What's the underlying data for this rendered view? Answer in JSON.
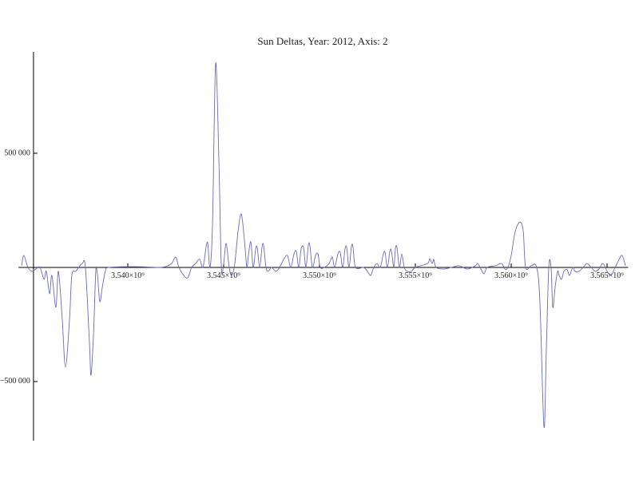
{
  "chart_data": {
    "type": "line",
    "title": "Sun Deltas, Year: 2012, Axis: 2",
    "xlim": [
      3534300000.0,
      3566100000.0
    ],
    "ylim": [
      -759000,
      944000
    ],
    "axes_origin_x": 3535080000.0,
    "xticks": [
      {
        "value": 3540000000.0,
        "label": "3.540×10⁹"
      },
      {
        "value": 3545000000.0,
        "label": "3.545×10⁹"
      },
      {
        "value": 3550000000.0,
        "label": "3.550×10⁹"
      },
      {
        "value": 3555000000.0,
        "label": "3.555×10⁹"
      },
      {
        "value": 3560000000.0,
        "label": "3.560×10⁹"
      },
      {
        "value": 3565000000.0,
        "label": "3.565×10⁹"
      }
    ],
    "yticks": [
      {
        "value": 500000,
        "label": "500 000"
      },
      {
        "value": -500000,
        "label": "−500 000"
      }
    ],
    "series": [
      {
        "color": "#6b6bbd",
        "x": [
          3534460000.0,
          3534580000.0,
          3534790000.0,
          3535000000.0,
          3535210000.0,
          3535420000.0,
          3535630000.0,
          3535750000.0,
          3535920000.0,
          3536040000.0,
          3536250000.0,
          3536380000.0,
          3536580000.0,
          3536750000.0,
          3536960000.0,
          3537080000.0,
          3537290000.0,
          3537500000.0,
          3537630000.0,
          3537790000.0,
          3538000000.0,
          3538080000.0,
          3538210000.0,
          3538330000.0,
          3538420000.0,
          3538540000.0,
          3538670000.0,
          3538830000.0,
          3539040000.0,
          3540420000.0,
          3541670000.0,
          3542080000.0,
          3542290000.0,
          3542500000.0,
          3542670000.0,
          3542920000.0,
          3543130000.0,
          3543330000.0,
          3543540000.0,
          3543750000.0,
          3543920000.0,
          3544080000.0,
          3544170000.0,
          3544290000.0,
          3544420000.0,
          3544580000.0,
          3544750000.0,
          3544880000.0,
          3545000000.0,
          3545130000.0,
          3545290000.0,
          3545420000.0,
          3545580000.0,
          3545750000.0,
          3545920000.0,
          3546080000.0,
          3546210000.0,
          3546290000.0,
          3546420000.0,
          3546540000.0,
          3546670000.0,
          3546750000.0,
          3546880000.0,
          3547000000.0,
          3547080000.0,
          3547210000.0,
          3547330000.0,
          3547500000.0,
          3547710000.0,
          3547920000.0,
          3548130000.0,
          3548330000.0,
          3548500000.0,
          3548670000.0,
          3548790000.0,
          3548920000.0,
          3549040000.0,
          3549170000.0,
          3549290000.0,
          3549420000.0,
          3549500000.0,
          3549630000.0,
          3549790000.0,
          3549920000.0,
          3550040000.0,
          3550250000.0,
          3550500000.0,
          3550670000.0,
          3550790000.0,
          3550960000.0,
          3551080000.0,
          3551210000.0,
          3551330000.0,
          3551420000.0,
          3551540000.0,
          3551670000.0,
          3551750000.0,
          3551880000.0,
          3552290000.0,
          3552500000.0,
          3552670000.0,
          3552830000.0,
          3553000000.0,
          3553170000.0,
          3553330000.0,
          3553420000.0,
          3553540000.0,
          3553670000.0,
          3553750000.0,
          3553880000.0,
          3553960000.0,
          3554040000.0,
          3554170000.0,
          3554290000.0,
          3554420000.0,
          3554580000.0,
          3554790000.0,
          3555000000.0,
          3555630000.0,
          3555750000.0,
          3555880000.0,
          3555960000.0,
          3556080000.0,
          3556460000.0,
          3556880000.0,
          3557290000.0,
          3557710000.0,
          3558130000.0,
          3558250000.0,
          3558420000.0,
          3558580000.0,
          3558750000.0,
          3559170000.0,
          3559500000.0,
          3559670000.0,
          3559830000.0,
          3560000000.0,
          3560210000.0,
          3560460000.0,
          3560630000.0,
          3560750000.0,
          3561040000.0,
          3561330000.0,
          3561500000.0,
          3561710000.0,
          3561830000.0,
          3561960000.0,
          3562080000.0,
          3562170000.0,
          3562290000.0,
          3562420000.0,
          3562500000.0,
          3562630000.0,
          3562750000.0,
          3562920000.0,
          3563040000.0,
          3563210000.0,
          3563330000.0,
          3563540000.0,
          3563750000.0,
          3563960000.0,
          3564170000.0,
          3564380000.0,
          3564580000.0,
          3564790000.0,
          3565000000.0,
          3565210000.0,
          3565420000.0,
          3565630000.0,
          3565790000.0,
          3565960000.0
        ],
        "values": [
          7000,
          52000,
          0,
          -17000,
          -7000,
          0,
          -52000,
          -17000,
          -115000,
          -35000,
          -175000,
          -17000,
          -227000,
          -437000,
          -227000,
          -35000,
          -17000,
          7000,
          17000,
          0,
          -332000,
          -472000,
          -297000,
          -17000,
          -35000,
          -150000,
          -87000,
          -17000,
          0,
          3000,
          0,
          7000,
          17000,
          45000,
          0,
          -35000,
          -45000,
          0,
          17000,
          35000,
          0,
          87000,
          105000,
          0,
          192000,
          892000,
          472000,
          0,
          17000,
          105000,
          0,
          -35000,
          17000,
          157000,
          234000,
          122000,
          0,
          52000,
          112000,
          0,
          80000,
          87000,
          0,
          87000,
          98000,
          0,
          -17000,
          0,
          -17000,
          0,
          35000,
          52000,
          0,
          59000,
          70000,
          0,
          80000,
          87000,
          0,
          98000,
          94000,
          0,
          52000,
          59000,
          0,
          0,
          17000,
          45000,
          0,
          59000,
          66000,
          0,
          80000,
          87000,
          0,
          94000,
          87000,
          0,
          0,
          -17000,
          -35000,
          0,
          17000,
          0,
          59000,
          66000,
          0,
          70000,
          73000,
          0,
          84000,
          87000,
          0,
          59000,
          0,
          -17000,
          -17000,
          0,
          17000,
          38000,
          17000,
          35000,
          0,
          -7000,
          0,
          7000,
          -7000,
          7000,
          17000,
          -7000,
          -28000,
          0,
          7000,
          17000,
          -7000,
          0,
          52000,
          157000,
          199000,
          157000,
          0,
          7000,
          0,
          -157000,
          -699000,
          -367000,
          0,
          0,
          -175000,
          -87000,
          -17000,
          -35000,
          -52000,
          -17000,
          -10000,
          -35000,
          0,
          -17000,
          -17000,
          0,
          17000,
          0,
          -17000,
          -7000,
          17000,
          -17000,
          -35000,
          0,
          35000,
          52000,
          7000
        ]
      }
    ]
  }
}
